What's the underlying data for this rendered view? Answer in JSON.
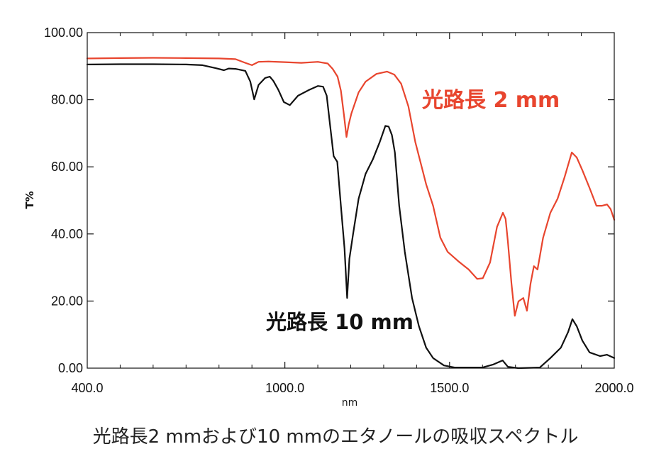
{
  "chart_data": {
    "type": "line",
    "xlabel": "nm",
    "ylabel": "T%",
    "xlim": [
      400,
      2000
    ],
    "ylim": [
      0,
      100
    ],
    "xticks": [
      400,
      1000,
      1500,
      2000
    ],
    "xtick_labels": [
      "400.0",
      "1000.0",
      "1500.0",
      "2000.0"
    ],
    "yticks": [
      0,
      20,
      40,
      60,
      80,
      100
    ],
    "ytick_labels": [
      "0.00",
      "20.00",
      "40.00",
      "60.00",
      "80.00",
      "100.00"
    ],
    "grid": false,
    "legend": "none",
    "series": [
      {
        "name": "光路長 2 mm",
        "color": "#E8452E",
        "x": [
          400,
          500,
          600,
          700,
          800,
          850,
          880,
          900,
          920,
          950,
          1000,
          1050,
          1100,
          1130,
          1145,
          1160,
          1170,
          1180,
          1187,
          1194,
          1202,
          1224,
          1245,
          1278,
          1310,
          1332,
          1353,
          1375,
          1396,
          1418,
          1429,
          1450,
          1472,
          1494,
          1526,
          1558,
          1584,
          1601,
          1623,
          1644,
          1662,
          1670,
          1677,
          1688,
          1698,
          1709,
          1724,
          1735,
          1746,
          1756,
          1767,
          1784,
          1806,
          1828,
          1849,
          1871,
          1886,
          1903,
          1925,
          1946,
          1963,
          1978,
          1989,
          2000
        ],
        "y": [
          92.3,
          92.4,
          92.5,
          92.4,
          92.3,
          92.1,
          91.0,
          90.3,
          91.3,
          91.4,
          91.2,
          91.0,
          91.3,
          90.8,
          89.2,
          86.9,
          82.7,
          75.0,
          68.9,
          72.7,
          75.9,
          82.2,
          85.4,
          87.7,
          88.4,
          87.5,
          84.8,
          78.0,
          67.4,
          59.0,
          54.8,
          48.4,
          38.9,
          34.7,
          31.9,
          29.4,
          26.6,
          26.8,
          31.5,
          42.1,
          46.3,
          44.5,
          37.8,
          25.2,
          15.6,
          19.9,
          20.9,
          17.1,
          25.2,
          30.4,
          29.4,
          38.9,
          46.3,
          50.5,
          56.9,
          64.3,
          62.8,
          59.0,
          53.7,
          48.4,
          48.4,
          48.8,
          47.4,
          44.2
        ]
      },
      {
        "name": "光路長 10 mm",
        "color": "#111111",
        "x": [
          400,
          500,
          600,
          700,
          750,
          790,
          815,
          830,
          850,
          880,
          895,
          907,
          920,
          940,
          954,
          965,
          980,
          997,
          1015,
          1040,
          1073,
          1100,
          1116,
          1127,
          1137,
          1148,
          1159,
          1170,
          1181,
          1189,
          1196,
          1207,
          1224,
          1245,
          1267,
          1288,
          1305,
          1315,
          1325,
          1334,
          1347,
          1364,
          1386,
          1407,
          1429,
          1450,
          1483,
          1515,
          1600,
          1633,
          1661,
          1677,
          1709,
          1774,
          1806,
          1838,
          1860,
          1873,
          1886,
          1903,
          1925,
          1957,
          1978,
          2000
        ],
        "y": [
          90.5,
          90.6,
          90.6,
          90.5,
          90.3,
          89.4,
          88.8,
          89.3,
          89.2,
          88.6,
          85.4,
          80.1,
          84.4,
          86.5,
          86.9,
          85.6,
          83.0,
          79.3,
          78.4,
          81.2,
          82.9,
          84.1,
          83.9,
          81.2,
          72.7,
          63.2,
          61.5,
          48.4,
          35.7,
          20.9,
          32.6,
          40.0,
          50.5,
          57.9,
          62.2,
          67.4,
          72.2,
          72.0,
          69.5,
          64.3,
          48.4,
          34.7,
          20.9,
          12.5,
          6.1,
          3.0,
          0.8,
          0.2,
          0.2,
          1.1,
          2.3,
          0.4,
          0.0,
          0.2,
          3.0,
          6.1,
          10.8,
          14.6,
          12.5,
          8.2,
          4.7,
          3.6,
          4.0,
          3.0
        ]
      }
    ]
  },
  "caption": "光路長2 mmおよび10 mmのエタノールの吸収スペクトル"
}
